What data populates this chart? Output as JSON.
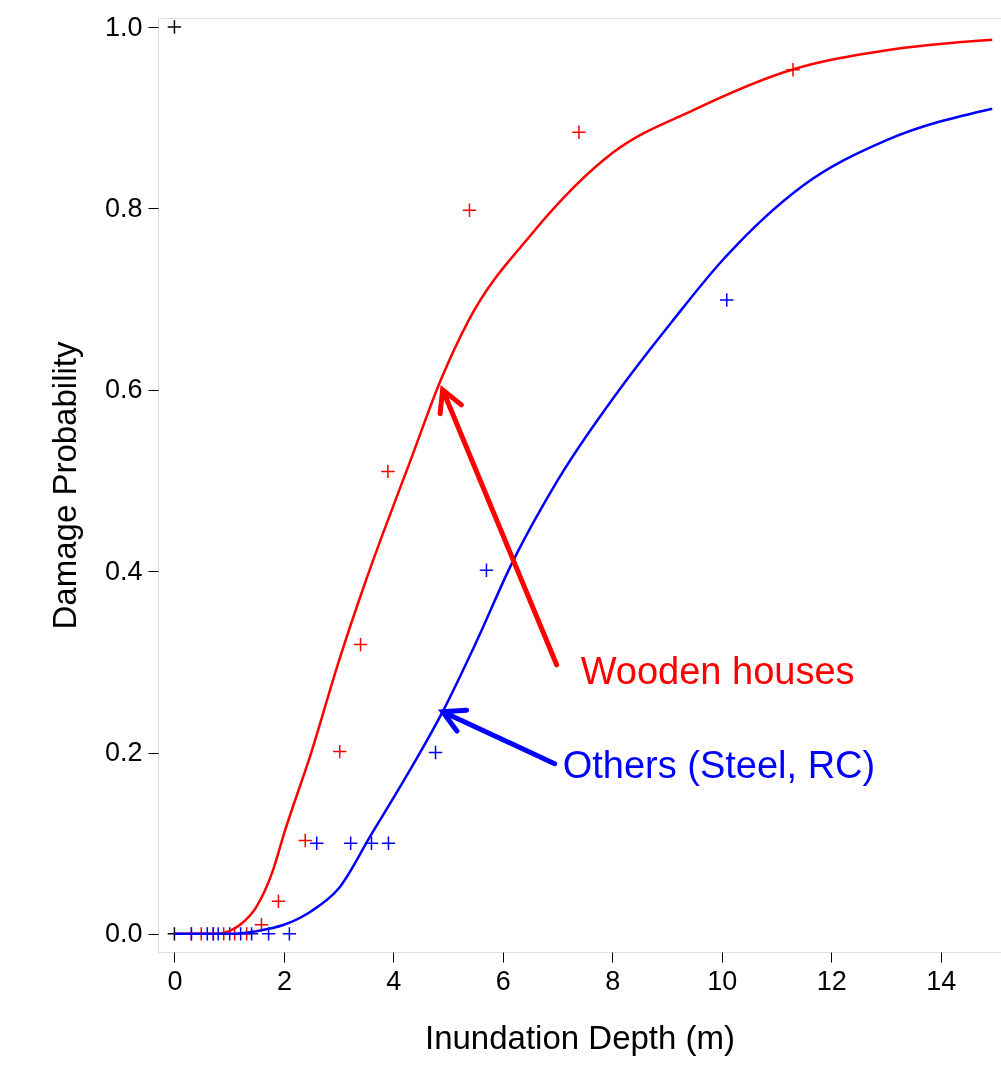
{
  "chart_data": {
    "type": "scatter",
    "xlabel": "Inundation Depth (m)",
    "ylabel": "Damage Probability",
    "xlim": [
      -0.3,
      15.1
    ],
    "ylim": [
      -0.02,
      1.01
    ],
    "xticks": [
      0,
      2,
      4,
      6,
      8,
      10,
      12,
      14
    ],
    "yticks": [
      {
        "value": 0,
        "label": "0.0"
      },
      {
        "value": 0.2,
        "label": "0.2"
      },
      {
        "value": 0.4,
        "label": "0.4"
      },
      {
        "value": 0.6,
        "label": "0.6"
      },
      {
        "value": 0.8,
        "label": "0.8"
      },
      {
        "value": 1,
        "label": "1.0"
      }
    ],
    "grid": false,
    "series": [
      {
        "marker": "cross",
        "color": "#ff0000",
        "x": [
          0.31,
          0.49,
          0.71,
          0.9,
          1.1,
          1.32,
          1.59,
          1.9,
          2.39,
          3.02,
          3.4,
          3.9,
          5.39,
          7.39,
          11.3
        ],
        "values": [
          0,
          0,
          0,
          0,
          0,
          0,
          0.01,
          0.036,
          0.103,
          0.201,
          0.319,
          0.51,
          0.798,
          0.884,
          0.953
        ]
      },
      {
        "marker": "cross",
        "color": "#0000ff",
        "x": [
          0.31,
          0.6,
          0.71,
          0.8,
          1.01,
          1.21,
          1.41,
          1.72,
          2.1,
          2.6,
          3.22,
          3.6,
          3.91,
          4.77,
          5.7,
          10.09
        ],
        "values": [
          0,
          0,
          0,
          0,
          0,
          0,
          0,
          0,
          0,
          0.1,
          0.1,
          0.1,
          0.1,
          0.2,
          0.401,
          0.699
        ]
      },
      {
        "marker": "cross",
        "color": "#000000",
        "x": [
          0,
          0
        ],
        "values": [
          0,
          1
        ]
      },
      {
        "type": "line",
        "color": "#ff0000",
        "x": [
          0,
          0.8,
          1.0,
          1.2,
          1.5,
          1.8,
          2.0,
          2.5,
          3.0,
          3.5,
          3.8,
          4.3,
          4.86,
          5.37,
          6.53,
          8.0,
          9.5,
          11.28,
          12.96,
          14.94
        ],
        "values": [
          0,
          0,
          0.003,
          0.01,
          0.03,
          0.07,
          0.11,
          0.2,
          0.3,
          0.39,
          0.44,
          0.52,
          0.61,
          0.676,
          0.772,
          0.861,
          0.909,
          0.953,
          0.974,
          0.986
        ]
      },
      {
        "type": "line",
        "color": "#0000ff",
        "x": [
          0,
          1.0,
          1.5,
          2.0,
          2.5,
          3.0,
          3.6,
          4.2,
          4.9,
          5.5,
          6.16,
          7.0,
          8.25,
          9.1,
          10.0,
          11.48,
          13.0,
          14.94
        ],
        "values": [
          0,
          0,
          0.003,
          0.01,
          0.025,
          0.05,
          0.11,
          0.17,
          0.245,
          0.32,
          0.408,
          0.5,
          0.61,
          0.676,
          0.742,
          0.825,
          0.875,
          0.91
        ]
      }
    ],
    "annotations": [
      {
        "text": "Wooden houses",
        "x": 4.9,
        "y": 0.6
      },
      {
        "text": "Others (Steel, RC)",
        "x": 4.9,
        "y": 0.245
      }
    ]
  }
}
